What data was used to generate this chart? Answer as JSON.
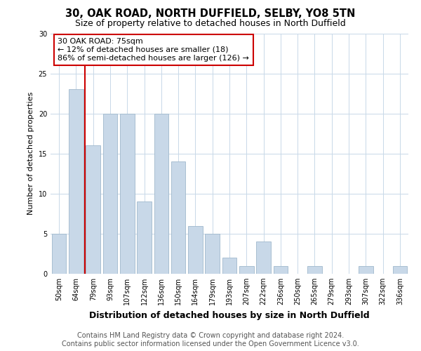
{
  "title": "30, OAK ROAD, NORTH DUFFIELD, SELBY, YO8 5TN",
  "subtitle": "Size of property relative to detached houses in North Duffield",
  "xlabel": "Distribution of detached houses by size in North Duffield",
  "ylabel": "Number of detached properties",
  "bar_labels": [
    "50sqm",
    "64sqm",
    "79sqm",
    "93sqm",
    "107sqm",
    "122sqm",
    "136sqm",
    "150sqm",
    "164sqm",
    "179sqm",
    "193sqm",
    "207sqm",
    "222sqm",
    "236sqm",
    "250sqm",
    "265sqm",
    "279sqm",
    "293sqm",
    "307sqm",
    "322sqm",
    "336sqm"
  ],
  "bar_values": [
    5,
    23,
    16,
    20,
    20,
    9,
    20,
    14,
    6,
    5,
    2,
    1,
    4,
    1,
    0,
    1,
    0,
    0,
    1,
    0,
    1
  ],
  "bar_color": "#c8d8e8",
  "bar_edge_color": "#a0b8cc",
  "highlight_line_color": "#cc0000",
  "annotation_line1": "30 OAK ROAD: 75sqm",
  "annotation_line2": "← 12% of detached houses are smaller (18)",
  "annotation_line3": "86% of semi-detached houses are larger (126) →",
  "annotation_box_edge_color": "#cc0000",
  "annotation_box_face_color": "#ffffff",
  "ylim": [
    0,
    30
  ],
  "yticks": [
    0,
    5,
    10,
    15,
    20,
    25,
    30
  ],
  "footer_line1": "Contains HM Land Registry data © Crown copyright and database right 2024.",
  "footer_line2": "Contains public sector information licensed under the Open Government Licence v3.0.",
  "bg_color": "#ffffff",
  "grid_color": "#c8d8e8",
  "title_fontsize": 10.5,
  "subtitle_fontsize": 9,
  "xlabel_fontsize": 9,
  "ylabel_fontsize": 8,
  "tick_fontsize": 7,
  "annotation_fontsize": 8,
  "footer_fontsize": 7
}
